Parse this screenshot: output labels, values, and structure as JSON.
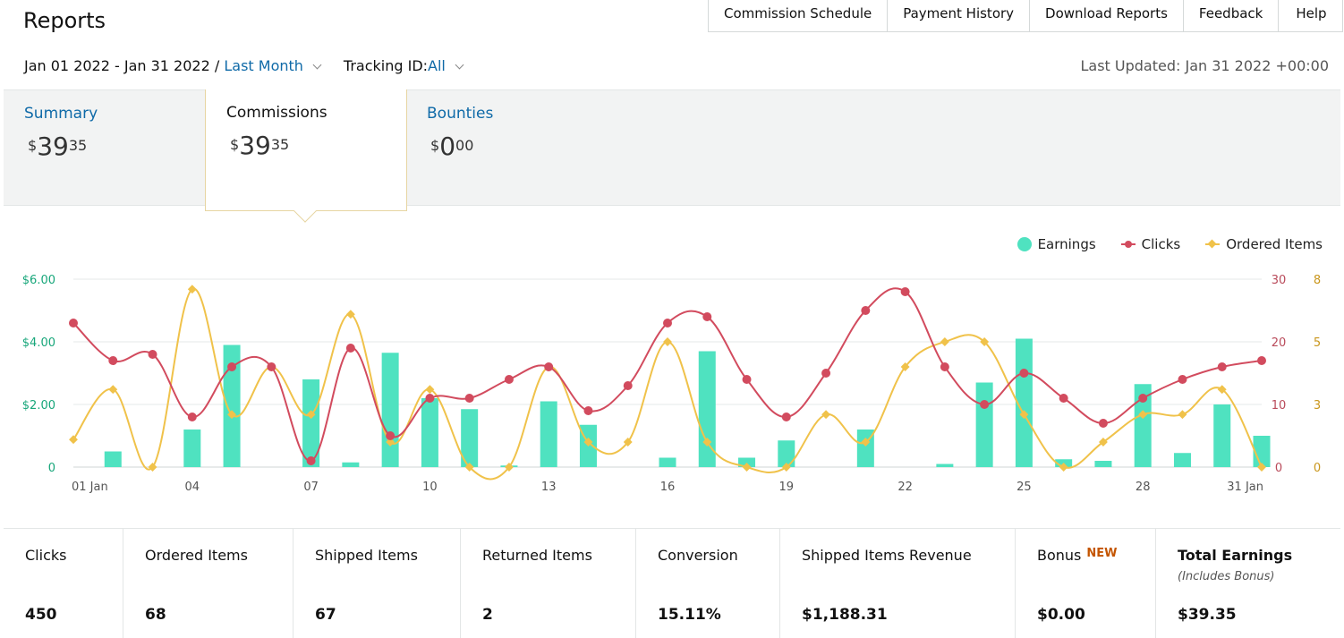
{
  "page_title": "Reports",
  "top_nav": [
    "Commission Schedule",
    "Payment History",
    "Download Reports",
    "Feedback",
    "Help"
  ],
  "filters": {
    "date_range": "Jan 01 2022 - Jan 31 2022 / ",
    "date_preset": "Last Month",
    "tracking_label": "Tracking ID: ",
    "tracking_value": "All"
  },
  "last_updated": "Last Updated: Jan 31 2022 +00:00",
  "tabs": {
    "summary": {
      "label": "Summary",
      "currency": "$",
      "whole": "39",
      "cents": "35"
    },
    "commissions": {
      "label": "Commissions",
      "currency": "$",
      "whole": "39",
      "cents": "35"
    },
    "bounties": {
      "label": "Bounties",
      "currency": "$",
      "whole": "0",
      "cents": "00"
    }
  },
  "legend": {
    "earnings": "Earnings",
    "clicks": "Clicks",
    "ordered": "Ordered Items"
  },
  "colors": {
    "earnings": "#4fe2c0",
    "clicks": "#d24b5e",
    "ordered": "#f0c24a",
    "link": "#0f6aa8"
  },
  "chart_data": {
    "type": "bar",
    "days": [
      1,
      2,
      3,
      4,
      5,
      6,
      7,
      8,
      9,
      10,
      11,
      12,
      13,
      14,
      15,
      16,
      17,
      18,
      19,
      20,
      21,
      22,
      23,
      24,
      25,
      26,
      27,
      28,
      29,
      30,
      31
    ],
    "x_tick_labels": [
      {
        "day": 1,
        "label": "01 Jan"
      },
      {
        "day": 4,
        "label": "04"
      },
      {
        "day": 7,
        "label": "07"
      },
      {
        "day": 10,
        "label": "10"
      },
      {
        "day": 13,
        "label": "13"
      },
      {
        "day": 16,
        "label": "16"
      },
      {
        "day": 19,
        "label": "19"
      },
      {
        "day": 22,
        "label": "22"
      },
      {
        "day": 25,
        "label": "25"
      },
      {
        "day": 28,
        "label": "28"
      },
      {
        "day": 31,
        "label": "31 Jan"
      }
    ],
    "y_left": {
      "ticks": [
        "0",
        "$2.00",
        "$4.00",
        "$6.00"
      ],
      "range": [
        0,
        6
      ]
    },
    "y_right_clicks": {
      "ticks": [
        "0",
        "10",
        "20",
        "30"
      ],
      "range": [
        0,
        30
      ]
    },
    "y_right_ordered": {
      "ticks": [
        "0",
        "3",
        "5",
        "8"
      ],
      "range": [
        0,
        7.5
      ]
    },
    "series": [
      {
        "name": "Earnings",
        "type": "bar",
        "axis": "left",
        "values": [
          0,
          0.5,
          0,
          1.2,
          3.9,
          0,
          2.8,
          0.15,
          3.65,
          2.2,
          1.85,
          0.05,
          2.1,
          1.35,
          0,
          0.3,
          3.7,
          0.3,
          0.85,
          0,
          1.2,
          0,
          0.1,
          2.7,
          4.1,
          0.25,
          0.2,
          2.65,
          0.45,
          2.0,
          1.0
        ]
      },
      {
        "name": "Clicks",
        "type": "line",
        "axis": "right_clicks",
        "values": [
          23,
          17,
          18,
          8,
          16,
          16,
          1,
          19,
          5,
          11,
          11,
          14,
          16,
          9,
          13,
          23,
          24,
          14,
          8,
          15,
          25,
          28,
          16,
          10,
          15,
          11,
          7,
          11,
          14,
          16,
          17
        ]
      },
      {
        "name": "Ordered Items",
        "type": "line",
        "axis": "right_ordered",
        "values": [
          1.1,
          3.1,
          0,
          7.1,
          2.1,
          4.0,
          2.1,
          6.1,
          1.0,
          3.1,
          0,
          0,
          4.0,
          1.0,
          1.0,
          5.0,
          1.0,
          0,
          0,
          2.1,
          1.0,
          4.0,
          5.0,
          5.0,
          2.1,
          0,
          1.0,
          2.1,
          2.1,
          3.1,
          0
        ]
      }
    ]
  },
  "stats": [
    {
      "label": "Clicks",
      "value": "450"
    },
    {
      "label": "Ordered Items",
      "value": "68"
    },
    {
      "label": "Shipped Items",
      "value": "67"
    },
    {
      "label": "Returned Items",
      "value": "2"
    },
    {
      "label": "Conversion",
      "value": "15.11%"
    },
    {
      "label": "Shipped Items Revenue",
      "value": "$1,188.31"
    },
    {
      "label": "Bonus",
      "badge": "NEW",
      "value": "$0.00"
    },
    {
      "label": "Total Earnings",
      "sublabel": "(Includes Bonus)",
      "value": "$39.35"
    }
  ]
}
